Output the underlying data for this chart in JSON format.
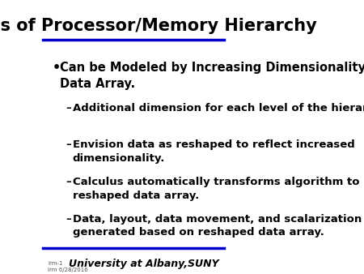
{
  "title": "Levels of Processor/Memory Hierarchy",
  "title_fontsize": 15,
  "title_fontweight": "bold",
  "title_color": "#000000",
  "background_color": "#ffffff",
  "line_color": "#0000cc",
  "bullet_text": "Can be Modeled by Increasing Dimensionality of\nData Array.",
  "bullet_fontsize": 10.5,
  "bullet_fontweight": "bold",
  "sub_bullets": [
    "Additional dimension for each level of the hierarchy.",
    "Envision data as reshaped to reflect increased\ndimensionality.",
    "Calculus automatically transforms algorithm to reflect\nreshaped data array.",
    "Data, layout, data movement, and scalarization automatically\ngenerated based on reshaped data array."
  ],
  "sub_bullet_fontsize": 9.5,
  "sub_bullet_fontweight": "bold",
  "footer_text": "University at Albany,SUNY",
  "footer_fontsize": 9,
  "footer_fontweight": "bold",
  "footer_color": "#000000",
  "small_text_line1": "lrm-1",
  "small_text_line2": "lrm 6/28/2016",
  "small_text_fontsize": 5
}
